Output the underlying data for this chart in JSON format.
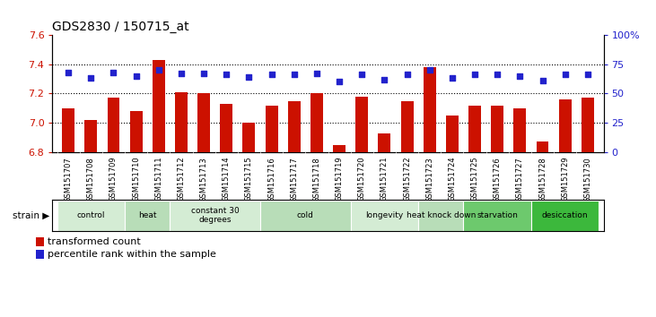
{
  "title": "GDS2830 / 150715_at",
  "samples": [
    "GSM151707",
    "GSM151708",
    "GSM151709",
    "GSM151710",
    "GSM151711",
    "GSM151712",
    "GSM151713",
    "GSM151714",
    "GSM151715",
    "GSM151716",
    "GSM151717",
    "GSM151718",
    "GSM151719",
    "GSM151720",
    "GSM151721",
    "GSM151722",
    "GSM151723",
    "GSM151724",
    "GSM151725",
    "GSM151726",
    "GSM151727",
    "GSM151728",
    "GSM151729",
    "GSM151730"
  ],
  "transformed_count": [
    7.1,
    7.02,
    7.17,
    7.08,
    7.43,
    7.21,
    7.2,
    7.13,
    7.0,
    7.12,
    7.15,
    7.2,
    6.85,
    7.18,
    6.93,
    7.15,
    7.38,
    7.05,
    7.12,
    7.12,
    7.1,
    6.87,
    7.16,
    7.17
  ],
  "percentile_rank": [
    68,
    63,
    68,
    65,
    70,
    67,
    67,
    66,
    64,
    66,
    66,
    67,
    60,
    66,
    62,
    66,
    70,
    63,
    66,
    66,
    65,
    61,
    66,
    66
  ],
  "groups": [
    {
      "label": "control",
      "start": 0,
      "end": 3,
      "color": "#d4ecd4"
    },
    {
      "label": "heat",
      "start": 3,
      "end": 5,
      "color": "#b8ddb8"
    },
    {
      "label": "constant 30\ndegrees",
      "start": 5,
      "end": 9,
      "color": "#d4ecd4"
    },
    {
      "label": "cold",
      "start": 9,
      "end": 13,
      "color": "#b8ddb8"
    },
    {
      "label": "longevity",
      "start": 13,
      "end": 16,
      "color": "#d4ecd4"
    },
    {
      "label": "heat knock down",
      "start": 16,
      "end": 18,
      "color": "#b8ddb8"
    },
    {
      "label": "starvation",
      "start": 18,
      "end": 21,
      "color": "#6dc96d"
    },
    {
      "label": "desiccation",
      "start": 21,
      "end": 24,
      "color": "#3cb83c"
    }
  ],
  "ylim_left": [
    6.8,
    7.6
  ],
  "ylim_right": [
    0,
    100
  ],
  "yticks_left": [
    6.8,
    7.0,
    7.2,
    7.4,
    7.6
  ],
  "yticks_right": [
    0,
    25,
    50,
    75,
    100
  ],
  "bar_color": "#cc1100",
  "dot_color": "#2222cc",
  "bg_color": "#ffffff",
  "legend_items": [
    {
      "color": "#cc1100",
      "label": "transformed count"
    },
    {
      "color": "#2222cc",
      "label": "percentile rank within the sample"
    }
  ]
}
